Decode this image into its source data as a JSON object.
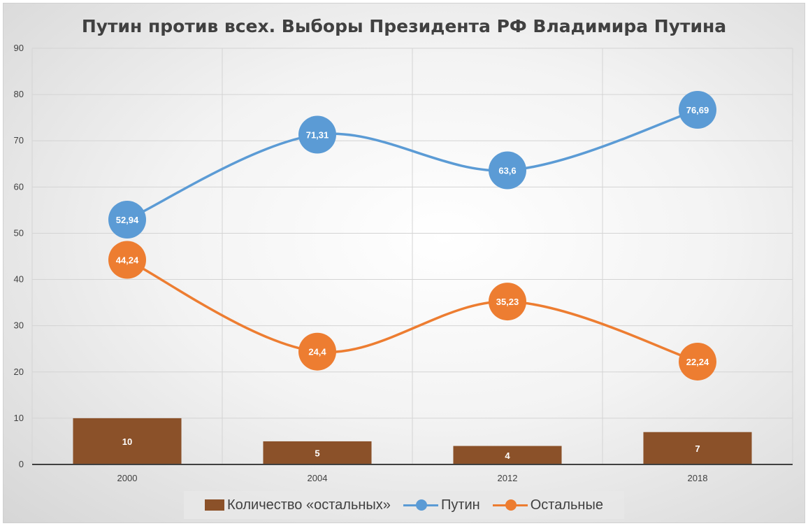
{
  "chart_data": {
    "type": "line",
    "title": "Путин против всех. Выборы Президента РФ Владимира Путина",
    "categories": [
      "2000",
      "2004",
      "2012",
      "2018"
    ],
    "ylim": [
      0,
      90
    ],
    "yticks": [
      "0",
      "10",
      "20",
      "30",
      "40",
      "50",
      "60",
      "70",
      "80",
      "90"
    ],
    "grid": true,
    "legend_position": "bottom",
    "series": [
      {
        "name": "Количество «остальных»",
        "kind": "bar",
        "color": "#8b5129",
        "values": [
          10,
          5,
          4,
          7
        ],
        "labels": [
          "10",
          "5",
          "4",
          "7"
        ]
      },
      {
        "name": "Путин",
        "kind": "line",
        "color": "#5b9bd5",
        "values": [
          52.94,
          71.31,
          63.6,
          76.69
        ],
        "labels": [
          "52,94",
          "71,31",
          "63,6",
          "76,69"
        ]
      },
      {
        "name": "Остальные",
        "kind": "line",
        "color": "#ed7d31",
        "values": [
          44.24,
          24.4,
          35.23,
          22.24
        ],
        "labels": [
          "44,24",
          "24,4",
          "35,23",
          "22,24"
        ]
      }
    ]
  }
}
